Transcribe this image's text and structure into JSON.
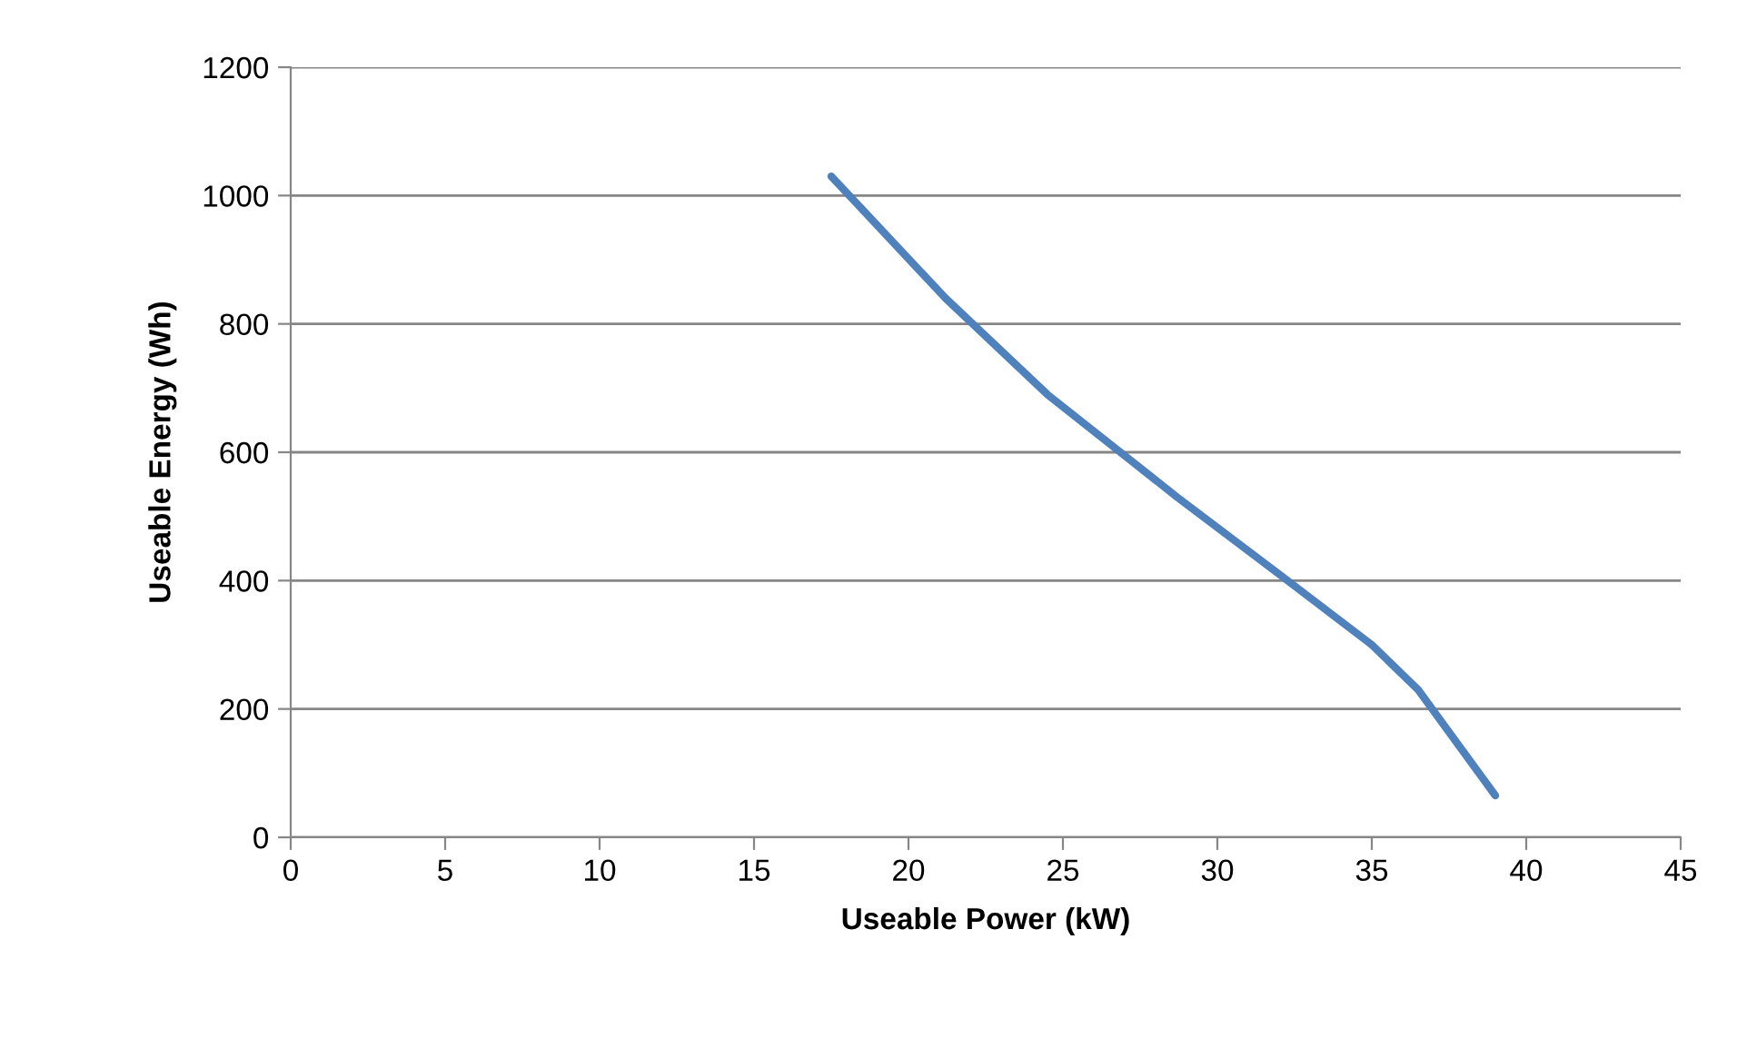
{
  "chart_data": {
    "type": "line",
    "xlabel": "Useable Power (kW)",
    "ylabel": "Useable Energy (Wh)",
    "series": [
      {
        "color": "#4f81bd",
        "x": [
          17.5,
          21.2,
          24.5,
          28.7,
          32,
          35,
          36.5,
          39
        ],
        "values": [
          1030,
          840,
          690,
          530,
          410,
          300,
          230,
          65
        ]
      }
    ],
    "xlim": [
      0,
      45
    ],
    "xticks": [
      0,
      5,
      10,
      15,
      20,
      25,
      30,
      35,
      40,
      45
    ],
    "ylim": [
      0,
      1200
    ],
    "yticks": [
      0,
      200,
      400,
      600,
      800,
      1000,
      1200
    ],
    "grid": "y",
    "legend": false,
    "marker": "none",
    "line_style": "solid"
  }
}
